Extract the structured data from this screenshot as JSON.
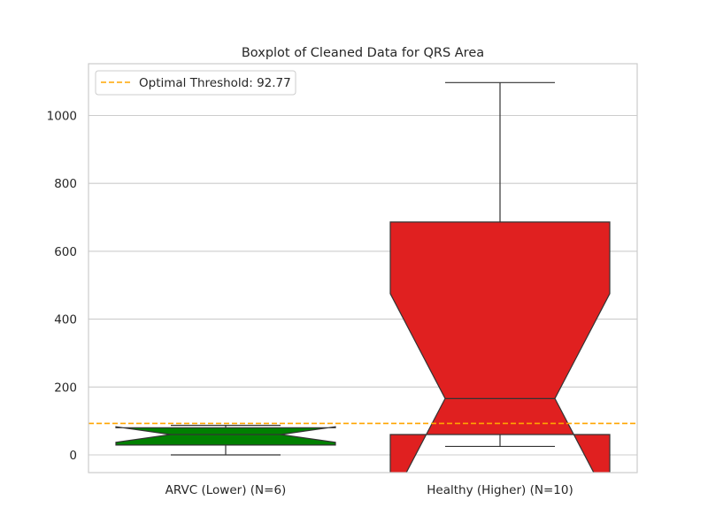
{
  "chart_data": {
    "type": "boxplot",
    "title": "Boxplot of Cleaned Data for QRS Area",
    "xlabel": "",
    "ylabel": "",
    "ylim": [
      -52,
      1150
    ],
    "yticks": [
      0,
      200,
      400,
      600,
      800,
      1000
    ],
    "grid": "horizontal",
    "legend_position": "top-left",
    "categories": [
      "ARVC (Lower) (N=6)",
      "Healthy (Higher) (N=10)"
    ],
    "boxes": [
      {
        "category": "ARVC (Lower) (N=6)",
        "color": "#008000",
        "whisker_low": 0,
        "q1": 29,
        "notch_low": 37,
        "median": 60,
        "notch_high": 83,
        "q3": 80,
        "whisker_high": 87
      },
      {
        "category": "Healthy (Higher) (N=10)",
        "color": "#e02020",
        "whisker_low": 25,
        "q1": 60,
        "notch_low": -142,
        "median": 166,
        "notch_high": 475,
        "q3": 686,
        "whisker_high": 1097
      }
    ],
    "threshold": {
      "label": "Optimal Threshold: 92.77",
      "value": 92.77,
      "color": "#ffa500"
    }
  }
}
